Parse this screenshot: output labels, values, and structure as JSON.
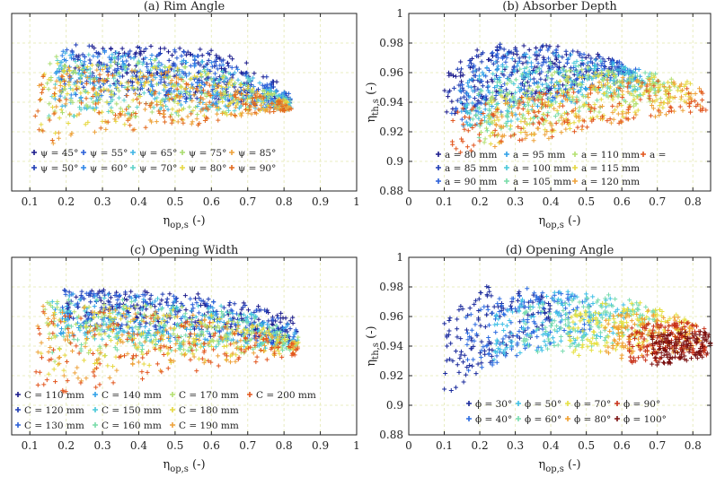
{
  "chart_data": [
    {
      "type": "scatter",
      "title": "(a) Rim Angle",
      "xlabel": "η_op,s (-)",
      "ylabel": "",
      "xlim": [
        0.05,
        1.0
      ],
      "ylim": [
        0.88,
        1.0
      ],
      "x_ticks": [
        "0.1",
        "0.2",
        "0.3",
        "0.4",
        "0.5",
        "0.6",
        "0.7",
        "0.8",
        "0.9",
        "1"
      ],
      "y_ticks": [],
      "grid": true,
      "marker": "+",
      "legend_position": "bottom-center",
      "legend": {
        "cols": 5,
        "labels": [
          "ψ = 45°",
          "ψ = 50°",
          "ψ = 55°",
          "ψ = 60°",
          "ψ = 65°",
          "ψ = 70°",
          "ψ = 75°",
          "ψ = 80°",
          "ψ = 85°",
          "ψ = 90°"
        ]
      },
      "colors": [
        "#1a1a8c",
        "#1e3cb4",
        "#2a5fd8",
        "#2f86e8",
        "#3fb4e4",
        "#5fd2c8",
        "#a8dc6e",
        "#e6d840",
        "#eea23a",
        "#e26a1e"
      ],
      "series": [
        {
          "name": "ψ = 45°",
          "region": {
            "x": [
              0.22,
              0.82
            ],
            "y_top": [
              0.981,
              0.948
            ],
            "y_bottom": [
              0.955,
              0.935
            ],
            "peak_x": 0.5,
            "peak_y": 0.978
          }
        },
        {
          "name": "ψ = 50°",
          "region": {
            "x": [
              0.2,
              0.82
            ],
            "y_top": [
              0.98,
              0.946
            ],
            "y_bottom": [
              0.95,
              0.935
            ],
            "peak_x": 0.48,
            "peak_y": 0.977
          }
        },
        {
          "name": "ψ = 55°",
          "region": {
            "x": [
              0.18,
              0.82
            ],
            "y_top": [
              0.979,
              0.945
            ],
            "y_bottom": [
              0.945,
              0.935
            ],
            "peak_x": 0.46,
            "peak_y": 0.976
          }
        },
        {
          "name": "ψ = 60°",
          "region": {
            "x": [
              0.17,
              0.82
            ],
            "y_top": [
              0.978,
              0.944
            ],
            "y_bottom": [
              0.94,
              0.935
            ],
            "peak_x": 0.44,
            "peak_y": 0.975
          }
        },
        {
          "name": "ψ = 65°",
          "region": {
            "x": [
              0.16,
              0.82
            ],
            "y_top": [
              0.977,
              0.943
            ],
            "y_bottom": [
              0.935,
              0.935
            ],
            "peak_x": 0.42,
            "peak_y": 0.973
          }
        },
        {
          "name": "ψ = 70°",
          "region": {
            "x": [
              0.15,
              0.82
            ],
            "y_top": [
              0.975,
              0.942
            ],
            "y_bottom": [
              0.93,
              0.935
            ],
            "peak_x": 0.4,
            "peak_y": 0.971
          }
        },
        {
          "name": "ψ = 75°",
          "region": {
            "x": [
              0.14,
              0.82
            ],
            "y_top": [
              0.973,
              0.941
            ],
            "y_bottom": [
              0.925,
              0.935
            ],
            "peak_x": 0.38,
            "peak_y": 0.969
          }
        },
        {
          "name": "ψ = 80°",
          "region": {
            "x": [
              0.13,
              0.82
            ],
            "y_top": [
              0.97,
              0.94
            ],
            "y_bottom": [
              0.918,
              0.935
            ],
            "peak_x": 0.36,
            "peak_y": 0.966
          }
        },
        {
          "name": "ψ = 85°",
          "region": {
            "x": [
              0.12,
              0.82
            ],
            "y_top": [
              0.967,
              0.939
            ],
            "y_bottom": [
              0.91,
              0.935
            ],
            "peak_x": 0.34,
            "peak_y": 0.963
          }
        },
        {
          "name": "ψ = 90°",
          "region": {
            "x": [
              0.11,
              0.82
            ],
            "y_top": [
              0.964,
              0.938
            ],
            "y_bottom": [
              0.905,
              0.935
            ],
            "peak_x": 0.32,
            "peak_y": 0.96
          }
        }
      ]
    },
    {
      "type": "scatter",
      "title": "(b) Absorber Depth",
      "xlabel": "η_op,s (-)",
      "ylabel": "η_th,s (-)",
      "xlim": [
        0,
        0.85
      ],
      "ylim": [
        0.88,
        1.0
      ],
      "x_ticks": [
        "0",
        "0.1",
        "0.2",
        "0.3",
        "0.4",
        "0.5",
        "0.6",
        "0.7",
        "0.8"
      ],
      "y_ticks": [
        "0.88",
        "0.9",
        "0.92",
        "0.94",
        "0.96",
        "0.98",
        "1"
      ],
      "grid": true,
      "marker": "+",
      "legend_position": "bottom-center",
      "legend": {
        "cols": 4,
        "labels": [
          "a = 80 mm",
          "a = 85 mm",
          "a = 90 mm",
          "a = 95 mm",
          "a = 100 mm",
          "a = 105 mm",
          "a = 110 mm",
          "a = 115 mm",
          "a = 120 mm",
          "a ="
        ]
      },
      "colors": [
        "#1a1a8c",
        "#1e3cb4",
        "#2a5fd8",
        "#2fa0e8",
        "#48c8d8",
        "#78dca8",
        "#b4e070",
        "#e6d840",
        "#eea23a",
        "#e2561e"
      ],
      "series": [
        {
          "name": "a = 80 mm",
          "region": {
            "x": [
              0.1,
              0.6
            ],
            "y_top": [
              0.955,
              0.968
            ],
            "y_bottom": [
              0.93,
              0.96
            ],
            "peak_x": 0.25,
            "peak_y": 0.981
          }
        },
        {
          "name": "a = 85 mm",
          "region": {
            "x": [
              0.11,
              0.62
            ],
            "y_top": [
              0.953,
              0.966
            ],
            "y_bottom": [
              0.928,
              0.958
            ],
            "peak_x": 0.26,
            "peak_y": 0.98
          }
        },
        {
          "name": "a = 90 mm",
          "region": {
            "x": [
              0.12,
              0.64
            ],
            "y_top": [
              0.95,
              0.964
            ],
            "y_bottom": [
              0.925,
              0.955
            ],
            "peak_x": 0.28,
            "peak_y": 0.978
          }
        },
        {
          "name": "a = 95 mm",
          "region": {
            "x": [
              0.14,
              0.66
            ],
            "y_top": [
              0.947,
              0.962
            ],
            "y_bottom": [
              0.922,
              0.952
            ],
            "peak_x": 0.3,
            "peak_y": 0.975
          }
        },
        {
          "name": "a = 100 mm",
          "region": {
            "x": [
              0.16,
              0.68
            ],
            "y_top": [
              0.944,
              0.96
            ],
            "y_bottom": [
              0.918,
              0.95
            ],
            "peak_x": 0.34,
            "peak_y": 0.972
          }
        },
        {
          "name": "a = 105 mm",
          "region": {
            "x": [
              0.18,
              0.72
            ],
            "y_top": [
              0.941,
              0.958
            ],
            "y_bottom": [
              0.915,
              0.947
            ],
            "peak_x": 0.38,
            "peak_y": 0.968
          }
        },
        {
          "name": "a = 110 mm",
          "region": {
            "x": [
              0.2,
              0.76
            ],
            "y_top": [
              0.938,
              0.956
            ],
            "y_bottom": [
              0.912,
              0.944
            ],
            "peak_x": 0.44,
            "peak_y": 0.964
          }
        },
        {
          "name": "a = 115 mm",
          "region": {
            "x": [
              0.22,
              0.8
            ],
            "y_top": [
              0.935,
              0.954
            ],
            "y_bottom": [
              0.91,
              0.94
            ],
            "peak_x": 0.52,
            "peak_y": 0.96
          }
        },
        {
          "name": "a = 120 mm",
          "region": {
            "x": [
              0.24,
              0.83
            ],
            "y_top": [
              0.932,
              0.952
            ],
            "y_bottom": [
              0.908,
              0.936
            ],
            "peak_x": 0.6,
            "peak_y": 0.957
          }
        },
        {
          "name": "a =",
          "region": {
            "x": [
              0.12,
              0.84
            ],
            "y_top": [
              0.93,
              0.95
            ],
            "y_bottom": [
              0.905,
              0.934
            ],
            "peak_x": 0.7,
            "peak_y": 0.955
          }
        }
      ]
    },
    {
      "type": "scatter",
      "title": "(c) Opening Width",
      "xlabel": "η_op,s (-)",
      "ylabel": "",
      "xlim": [
        0.05,
        1.0
      ],
      "ylim": [
        0.88,
        1.0
      ],
      "x_ticks": [
        "0.1",
        "0.2",
        "0.3",
        "0.4",
        "0.5",
        "0.6",
        "0.7",
        "0.8",
        "0.9",
        "1"
      ],
      "y_ticks": [],
      "grid": true,
      "marker": "+",
      "legend_position": "bottom-center",
      "legend": {
        "cols": 4,
        "labels": [
          "C = 110 mm",
          "C = 120 mm",
          "C = 130 mm",
          "C = 140 mm",
          "C = 150 mm",
          "C = 160 mm",
          "C = 170 mm",
          "C = 180 mm",
          "C = 190 mm",
          "C = 200 mm"
        ]
      },
      "colors": [
        "#1a1a8c",
        "#1e3cb4",
        "#2a5fd8",
        "#2fa0e8",
        "#48c8d8",
        "#78dca8",
        "#b4e070",
        "#e6d840",
        "#eea23a",
        "#e2561e"
      ],
      "series": [
        {
          "name": "C = 110 mm",
          "region": {
            "x": [
              0.2,
              0.84
            ],
            "y_top": [
              0.981,
              0.958
            ],
            "y_bottom": [
              0.96,
              0.942
            ],
            "peak_x": 0.45,
            "peak_y": 0.977
          }
        },
        {
          "name": "C = 120 mm",
          "region": {
            "x": [
              0.19,
              0.84
            ],
            "y_top": [
              0.98,
              0.956
            ],
            "y_bottom": [
              0.955,
              0.941
            ],
            "peak_x": 0.45,
            "peak_y": 0.976
          }
        },
        {
          "name": "C = 130 mm",
          "region": {
            "x": [
              0.18,
              0.84
            ],
            "y_top": [
              0.979,
              0.954
            ],
            "y_bottom": [
              0.95,
              0.94
            ],
            "peak_x": 0.44,
            "peak_y": 0.975
          }
        },
        {
          "name": "C = 140 mm",
          "region": {
            "x": [
              0.17,
              0.84
            ],
            "y_top": [
              0.978,
              0.952
            ],
            "y_bottom": [
              0.945,
              0.939
            ],
            "peak_x": 0.43,
            "peak_y": 0.974
          }
        },
        {
          "name": "C = 150 mm",
          "region": {
            "x": [
              0.16,
              0.84
            ],
            "y_top": [
              0.977,
              0.95
            ],
            "y_bottom": [
              0.94,
              0.938
            ],
            "peak_x": 0.42,
            "peak_y": 0.973
          }
        },
        {
          "name": "C = 160 mm",
          "region": {
            "x": [
              0.15,
              0.84
            ],
            "y_top": [
              0.975,
              0.948
            ],
            "y_bottom": [
              0.935,
              0.937
            ],
            "peak_x": 0.4,
            "peak_y": 0.971
          }
        },
        {
          "name": "C = 170 mm",
          "region": {
            "x": [
              0.14,
              0.84
            ],
            "y_top": [
              0.973,
              0.946
            ],
            "y_bottom": [
              0.928,
              0.936
            ],
            "peak_x": 0.38,
            "peak_y": 0.969
          }
        },
        {
          "name": "C = 180 mm",
          "region": {
            "x": [
              0.13,
              0.84
            ],
            "y_top": [
              0.971,
              0.944
            ],
            "y_bottom": [
              0.92,
              0.935
            ],
            "peak_x": 0.36,
            "peak_y": 0.967
          }
        },
        {
          "name": "C = 190 mm",
          "region": {
            "x": [
              0.12,
              0.84
            ],
            "y_top": [
              0.969,
              0.942
            ],
            "y_bottom": [
              0.912,
              0.935
            ],
            "peak_x": 0.34,
            "peak_y": 0.965
          }
        },
        {
          "name": "C = 200 mm",
          "region": {
            "x": [
              0.11,
              0.84
            ],
            "y_top": [
              0.967,
              0.94
            ],
            "y_bottom": [
              0.905,
              0.934
            ],
            "peak_x": 0.32,
            "peak_y": 0.963
          }
        }
      ]
    },
    {
      "type": "scatter",
      "title": "(d) Opening Angle",
      "xlabel": "η_op,s (-)",
      "ylabel": "η_th,s (-)",
      "xlim": [
        0,
        0.85
      ],
      "ylim": [
        0.88,
        1.0
      ],
      "x_ticks": [
        "0",
        "0.1",
        "0.2",
        "0.3",
        "0.4",
        "0.5",
        "0.6",
        "0.7",
        "0.8"
      ],
      "y_ticks": [
        "0.88",
        "0.9",
        "0.92",
        "0.94",
        "0.96",
        "0.98",
        "1"
      ],
      "grid": true,
      "marker": "+",
      "legend_position": "bottom-center",
      "legend": {
        "cols": 5,
        "labels": [
          "ϕ = 30°",
          "ϕ = 40°",
          "ϕ = 50°",
          "ϕ = 60°",
          "ϕ = 70°",
          "ϕ = 80°",
          "ϕ = 90°",
          "ϕ = 100°"
        ]
      },
      "colors": [
        "#1a2a9c",
        "#2a6ae0",
        "#3fc0e6",
        "#7adcb0",
        "#e6e040",
        "#f0a030",
        "#c83018",
        "#7a1010"
      ],
      "series": [
        {
          "name": "ϕ = 30°",
          "region": {
            "x": [
              0.1,
              0.4
            ],
            "y_top": [
              0.955,
              0.972
            ],
            "y_bottom": [
              0.905,
              0.955
            ],
            "peak_x": 0.22,
            "peak_y": 0.981
          }
        },
        {
          "name": "ϕ = 40°",
          "region": {
            "x": [
              0.16,
              0.52
            ],
            "y_top": [
              0.958,
              0.97
            ],
            "y_bottom": [
              0.92,
              0.952
            ],
            "peak_x": 0.32,
            "peak_y": 0.979
          }
        },
        {
          "name": "ϕ = 50°",
          "region": {
            "x": [
              0.24,
              0.62
            ],
            "y_top": [
              0.962,
              0.968
            ],
            "y_bottom": [
              0.93,
              0.95
            ],
            "peak_x": 0.44,
            "peak_y": 0.978
          }
        },
        {
          "name": "ϕ = 60°",
          "region": {
            "x": [
              0.32,
              0.7
            ],
            "y_top": [
              0.963,
              0.965
            ],
            "y_bottom": [
              0.932,
              0.946
            ],
            "peak_x": 0.52,
            "peak_y": 0.976
          }
        },
        {
          "name": "ϕ = 70°",
          "region": {
            "x": [
              0.45,
              0.78
            ],
            "y_top": [
              0.962,
              0.96
            ],
            "y_bottom": [
              0.932,
              0.942
            ],
            "peak_x": 0.62,
            "peak_y": 0.972
          }
        },
        {
          "name": "ϕ = 80°",
          "region": {
            "x": [
              0.55,
              0.82
            ],
            "y_top": [
              0.958,
              0.956
            ],
            "y_bottom": [
              0.93,
              0.938
            ],
            "peak_x": 0.7,
            "peak_y": 0.965
          }
        },
        {
          "name": "ϕ = 90°",
          "region": {
            "x": [
              0.62,
              0.84
            ],
            "y_top": [
              0.952,
              0.952
            ],
            "y_bottom": [
              0.928,
              0.934
            ],
            "peak_x": 0.76,
            "peak_y": 0.957
          }
        },
        {
          "name": "ϕ = 100°",
          "region": {
            "x": [
              0.68,
              0.85
            ],
            "y_top": [
              0.948,
              0.95
            ],
            "y_bottom": [
              0.926,
              0.933
            ],
            "peak_x": 0.8,
            "peak_y": 0.95
          }
        }
      ]
    }
  ]
}
